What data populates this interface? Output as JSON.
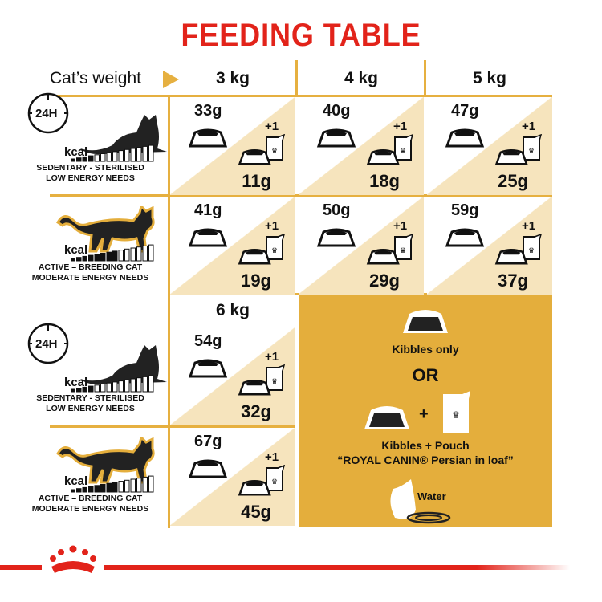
{
  "title": "FEEDING TABLE",
  "header": {
    "label": "Cat’s weight",
    "weights": [
      "3 kg",
      "4 kg",
      "5 kg"
    ],
    "weight_6": "6 kg"
  },
  "profiles": {
    "sedentary": {
      "clock": "24H",
      "kcal": "kcal",
      "line1": "SEDENTARY - STERILISED",
      "line2": "LOW ENERGY NEEDS",
      "energy_level": 4
    },
    "active": {
      "kcal": "kcal",
      "line1": "ACTIVE – BREEDING CAT",
      "line2": "MODERATE ENERGY NEEDS",
      "energy_level": 8
    }
  },
  "plus_one": "+1",
  "rows": [
    {
      "profile": "sedentary",
      "cells": [
        {
          "kibbles": "33g",
          "mixed": "11g"
        },
        {
          "kibbles": "40g",
          "mixed": "18g"
        },
        {
          "kibbles": "47g",
          "mixed": "25g"
        }
      ]
    },
    {
      "profile": "active",
      "cells": [
        {
          "kibbles": "41g",
          "mixed": "19g"
        },
        {
          "kibbles": "50g",
          "mixed": "29g"
        },
        {
          "kibbles": "59g",
          "mixed": "37g"
        }
      ]
    },
    {
      "profile": "sedentary",
      "cells": [
        {
          "kibbles": "54g",
          "mixed": "32g"
        }
      ]
    },
    {
      "profile": "active",
      "cells": [
        {
          "kibbles": "67g",
          "mixed": "45g"
        }
      ]
    }
  ],
  "legend": {
    "kibbles_only": "Kibbles only",
    "or": "OR",
    "plus": "+",
    "kibbles_pouch": "Kibbles + Pouch",
    "product": "“ROYAL CANIN® Persian in loaf”",
    "water": "Water"
  },
  "colors": {
    "title": "#e2231a",
    "gold": "#e4ae3c",
    "beige": "#f6e4bd",
    "brand": "#e2231a"
  }
}
